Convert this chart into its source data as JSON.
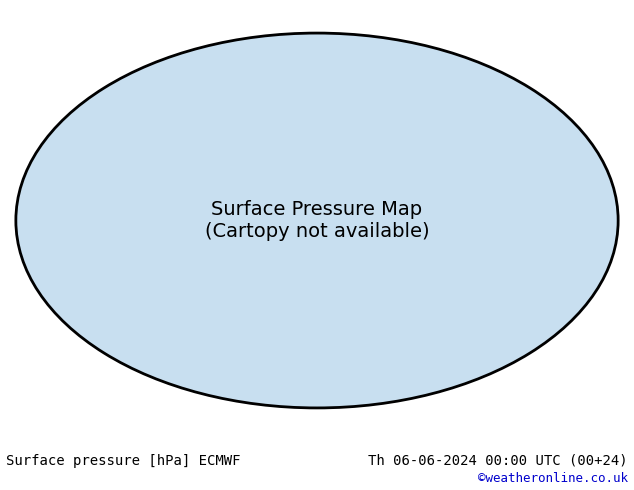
{
  "title_left": "Surface pressure [hPa] ECMWF",
  "title_right": "Th 06-06-2024 00:00 UTC (00+24)",
  "copyright": "©weatheronline.co.uk",
  "background_color": "#ffffff",
  "map_background": "#d0e8f0",
  "land_color": "#c8c8c8",
  "green_fill_color": "#90c878",
  "red_fill_color": "#e05050",
  "contour_low_color": "#0000cc",
  "contour_high_color": "#cc0000",
  "contour_base_color": "#000000",
  "contour_base_value": 1013,
  "contour_interval": 4,
  "pressure_min": 960,
  "pressure_max": 1040,
  "label_fontsize": 7,
  "footer_fontsize": 10,
  "copyright_fontsize": 9,
  "projection": "robinson",
  "lon_min": -180,
  "lon_max": 180,
  "lat_min": -90,
  "lat_max": 90
}
